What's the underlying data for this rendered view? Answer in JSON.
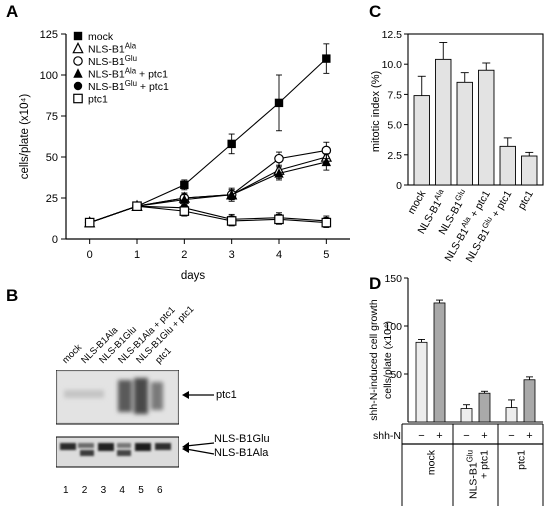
{
  "panels": {
    "a": "A",
    "b": "B",
    "c": "C",
    "d": "D"
  },
  "chart_data": [
    {
      "type": "line",
      "panel": "A",
      "xlabel": "days",
      "ylabel": "cells/plate (x10⁴)",
      "xlim": [
        -0.5,
        5.5
      ],
      "ylim": [
        0,
        125
      ],
      "x_ticks": [
        "0",
        "1",
        "2",
        "3",
        "4",
        "5"
      ],
      "y_ticks": [
        "0",
        "25",
        "50",
        "75",
        "100",
        "125"
      ],
      "x": [
        0,
        1,
        2,
        3,
        4,
        5
      ],
      "legend": "top-left",
      "series": [
        {
          "name": "mock",
          "marker": "filled-square",
          "values": [
            10,
            20,
            33,
            58,
            83,
            110
          ],
          "errors": [
            1,
            2,
            3,
            6,
            17,
            9
          ]
        },
        {
          "name": "NLS-B1Ala",
          "marker": "open-triangle",
          "values": [
            10,
            20,
            25,
            27,
            42,
            50
          ],
          "errors": [
            1,
            2,
            3,
            4,
            5,
            5
          ]
        },
        {
          "name": "NLS-B1Glu",
          "marker": "open-circle",
          "values": [
            10,
            20,
            25,
            27,
            49,
            54
          ],
          "errors": [
            1,
            2,
            3,
            3,
            4,
            5
          ]
        },
        {
          "name": "NLS-B1Ala + ptc1",
          "marker": "filled-triangle",
          "values": [
            10,
            20,
            24,
            27,
            40,
            47
          ],
          "errors": [
            1,
            2,
            3,
            3,
            4,
            5
          ]
        },
        {
          "name": "NLS-B1Glu + ptc1",
          "marker": "filled-circle",
          "values": [
            10,
            20,
            19,
            12,
            13,
            11
          ],
          "errors": [
            1,
            2,
            4,
            3,
            3,
            3
          ]
        },
        {
          "name": "ptc1",
          "marker": "open-square",
          "values": [
            10,
            20,
            17,
            11,
            12,
            10
          ],
          "errors": [
            1,
            2,
            3,
            3,
            3,
            3
          ]
        }
      ]
    },
    {
      "type": "bar",
      "panel": "C",
      "ylabel": "mitotic index (%)",
      "ylim": [
        0,
        12.5
      ],
      "y_ticks": [
        "0",
        "2.5",
        "5.0",
        "7.5",
        "10.0",
        "12.5"
      ],
      "categories": [
        "mock",
        "NLS-B1Ala",
        "NLS-B1Glu",
        "NLS-B1Ala + ptc1",
        "NLS-B1Glu + ptc1",
        "ptc1"
      ],
      "values": [
        7.4,
        10.4,
        8.5,
        9.5,
        3.2,
        2.4
      ],
      "errors": [
        1.6,
        1.4,
        0.8,
        0.6,
        0.7,
        0.3
      ]
    },
    {
      "type": "bar",
      "panel": "D",
      "ylabel_line1": "shh-N-induced  cell  growth",
      "ylabel_line2": "cells/plate (x10⁴)",
      "ylim": [
        0,
        150
      ],
      "y_ticks": [
        "50",
        "100",
        "150"
      ],
      "series_label": "shh-N",
      "series": [
        {
          "name": "−",
          "values": [
            83,
            14,
            15
          ],
          "errors": [
            3,
            4,
            8
          ]
        },
        {
          "name": "+",
          "values": [
            124,
            30,
            44
          ],
          "errors": [
            3,
            2,
            3
          ]
        }
      ],
      "categories": [
        "mock",
        "NLS-B1Glu + ptc1",
        "ptc1"
      ]
    }
  ],
  "blot": {
    "lanes": [
      "mock",
      "NLS-B1Ala",
      "NLS-B1Glu",
      "NLS-B1Ala + ptc1",
      "NLS-B1Glu + ptc1",
      "ptc1"
    ],
    "lane_numbers": [
      "1",
      "2",
      "3",
      "4",
      "5",
      "6"
    ],
    "upper_label": "ptc1",
    "lower_label_1": "NLS-B1Glu",
    "lower_label_2": "NLS-B1Ala"
  }
}
